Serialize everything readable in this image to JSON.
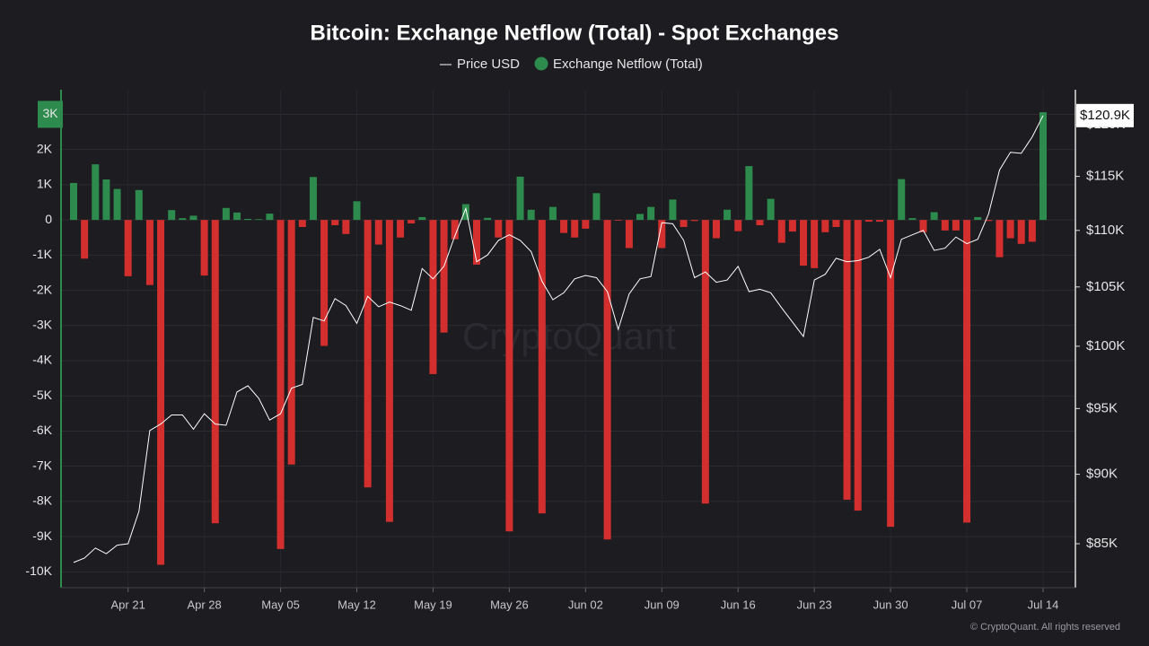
{
  "chart_data": {
    "type": "bar-line",
    "title": "Bitcoin: Exchange Netflow (Total) - Spot Exchanges",
    "watermark": "CryptoQuant",
    "copyright": "© CryptoQuant. All rights reserved",
    "categories": [
      null,
      null,
      null,
      null,
      null,
      "Apr 21",
      null,
      null,
      null,
      null,
      null,
      null,
      "Apr 28",
      null,
      null,
      null,
      null,
      null,
      null,
      "May 05",
      null,
      null,
      null,
      null,
      null,
      null,
      "May 12",
      null,
      null,
      null,
      null,
      null,
      null,
      "May 19",
      null,
      null,
      null,
      null,
      null,
      null,
      "May 26",
      null,
      null,
      null,
      null,
      null,
      null,
      "Jun 02",
      null,
      null,
      null,
      null,
      null,
      null,
      "Jun 09",
      null,
      null,
      null,
      null,
      null,
      null,
      "Jun 16",
      null,
      null,
      null,
      null,
      null,
      null,
      "Jun 23",
      null,
      null,
      null,
      null,
      null,
      null,
      "Jun 30",
      null,
      null,
      null,
      null,
      null,
      null,
      "Jul 07",
      null,
      null,
      null,
      null,
      null,
      null,
      "Jul 14"
    ],
    "series": [
      {
        "name": "Price USD",
        "type": "line",
        "axis": "y2",
        "color": "#ffffff",
        "values": [
          83700,
          84000,
          84700,
          84300,
          84900,
          85000,
          87300,
          93300,
          93800,
          94500,
          94500,
          93400,
          94600,
          93800,
          93700,
          96300,
          96800,
          95800,
          94100,
          94600,
          96600,
          96900,
          102400,
          102100,
          104000,
          103400,
          101900,
          104200,
          103300,
          103700,
          103400,
          103000,
          106600,
          105700,
          106800,
          109500,
          112000,
          107200,
          107800,
          109100,
          109600,
          109100,
          108100,
          105500,
          103900,
          104500,
          105700,
          106000,
          105800,
          104600,
          101400,
          104400,
          105700,
          105900,
          110700,
          110600,
          109100,
          105800,
          106300,
          105400,
          105600,
          106800,
          104600,
          104800,
          104500,
          103200,
          102000,
          100800,
          105600,
          106100,
          107500,
          107200,
          107300,
          107600,
          108300,
          105800,
          109200,
          109600,
          110000,
          108200,
          108400,
          109400,
          108800,
          109200,
          111500,
          115600,
          117300,
          117200,
          118800,
          120900
        ],
        "last_label": "$120.9K"
      },
      {
        "name": "Exchange Netflow (Total)",
        "type": "bar",
        "color": "#2e8b4e",
        "negative_color": "#d32f2f",
        "values": [
          1050,
          -1100,
          1580,
          1150,
          880,
          -1600,
          850,
          -1850,
          -9800,
          280,
          50,
          120,
          -1580,
          -8620,
          340,
          210,
          30,
          20,
          180,
          -9350,
          -6950,
          -200,
          1220,
          -3580,
          -150,
          -400,
          530,
          -7600,
          -700,
          -8580,
          -500,
          -100,
          80,
          -4380,
          -3200,
          -550,
          450,
          -1270,
          60,
          -500,
          -8850,
          1230,
          290,
          -8340,
          370,
          -370,
          -500,
          -250,
          760,
          -9080,
          -20,
          -800,
          170,
          370,
          -800,
          580,
          -200,
          -30,
          -8060,
          -520,
          290,
          -320,
          1530,
          -150,
          600,
          -650,
          -330,
          -1300,
          -1370,
          -350,
          -200,
          -7950,
          -8260,
          -50,
          -50,
          -8720,
          1160,
          50,
          -350,
          220,
          -300,
          -300,
          -8600,
          80,
          -30,
          -1060,
          -520,
          -680,
          -620,
          3060
        ]
      }
    ],
    "ylim": [
      -10450,
      3700
    ],
    "yticks": [
      {
        "value": -10000,
        "label": "-10K"
      },
      {
        "value": -9000,
        "label": "-9K"
      },
      {
        "value": -8000,
        "label": "-8K"
      },
      {
        "value": -7000,
        "label": "-7K"
      },
      {
        "value": -6000,
        "label": "-6K"
      },
      {
        "value": -5000,
        "label": "-5K"
      },
      {
        "value": -4000,
        "label": "-4K"
      },
      {
        "value": -3000,
        "label": "-3K"
      },
      {
        "value": -2000,
        "label": "-2K"
      },
      {
        "value": -1000,
        "label": "-1K"
      },
      0,
      {
        "value": 1000,
        "label": "1K"
      },
      {
        "value": 2000,
        "label": "2K"
      },
      {
        "value": 3000,
        "label": "3K"
      }
    ],
    "y2lim": [
      81980,
      123500
    ],
    "y2scale": "log",
    "y2ticks": [
      {
        "value": 85000,
        "label": "$85K"
      },
      {
        "value": 90000,
        "label": "$90K"
      },
      {
        "value": 95000,
        "label": "$95K"
      },
      {
        "value": 100000,
        "label": "$100K"
      },
      {
        "value": 105000,
        "label": "$105K"
      },
      {
        "value": 110000,
        "label": "$110K"
      },
      {
        "value": 115000,
        "label": "$115K"
      },
      {
        "value": 120000,
        "label": "$120K"
      }
    ],
    "grid": true
  }
}
